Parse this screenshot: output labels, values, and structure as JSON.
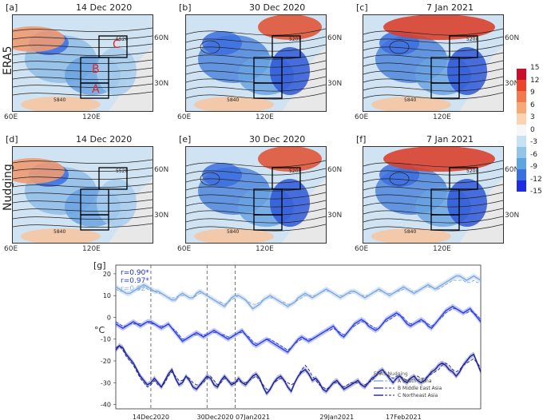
{
  "rows": [
    {
      "label": "ERA5",
      "panels": [
        {
          "tag": "[a]",
          "date": "14 Dec 2020"
        },
        {
          "tag": "[b]",
          "date": "30 Dec 2020"
        },
        {
          "tag": "[c]",
          "date": "7 Jan 2021"
        }
      ]
    },
    {
      "label": "Nudging",
      "panels": [
        {
          "tag": "[d]",
          "date": "14 Dec 2020"
        },
        {
          "tag": "[e]",
          "date": "30 Dec 2020"
        },
        {
          "tag": "[f]",
          "date": "7 Jan 2021"
        }
      ]
    }
  ],
  "map_ticks": {
    "x": [
      "60E",
      "120E"
    ],
    "y": [
      "60N",
      "30N"
    ]
  },
  "region_labels": [
    "A",
    "B",
    "C"
  ],
  "contour_labels": [
    "5840",
    "5520",
    "5200"
  ],
  "colorbar": {
    "ticks": [
      "15",
      "12",
      "9",
      "6",
      "3",
      "0",
      "-3",
      "-6",
      "-9",
      "-12",
      "-15"
    ],
    "colors": [
      "#c8102e",
      "#e8452a",
      "#f2794c",
      "#f7a876",
      "#fbd3b3",
      "#f7f7f7",
      "#c7e2f2",
      "#92c5e8",
      "#5ea5e0",
      "#3a6fe0",
      "#1c2ee0"
    ]
  },
  "chart_data": {
    "type": "line",
    "tag": "[g]",
    "ylabel": "°C",
    "ylim": [
      -42,
      24
    ],
    "yticks": [
      20,
      10,
      0,
      -10,
      -20,
      -30,
      -40
    ],
    "xticks": [
      "14Dec2020",
      "30Dec2020 07Jan2021",
      "29Jan2021",
      "17Feb2021"
    ],
    "correlations": [
      {
        "text": "r=0.90*",
        "color": "#1f2fb0"
      },
      {
        "text": "r=0.97*",
        "color": "#2b3fe0"
      },
      {
        "text": "r=0.92*",
        "color": "#8fb4e6"
      }
    ],
    "legend_title": "ERA5  Nudging",
    "series": [
      {
        "name": "A South China",
        "color": "#7fa9dd",
        "era5": [
          14,
          13,
          12,
          11,
          11,
          12,
          13,
          14,
          15,
          14,
          13,
          12,
          12,
          11,
          10,
          9,
          8,
          8,
          10,
          11,
          10,
          9,
          9,
          11,
          12,
          11,
          10,
          9,
          8,
          7,
          6,
          5,
          7,
          9,
          10,
          10,
          9,
          8,
          6,
          4,
          5,
          6,
          8,
          9,
          10,
          9,
          8,
          7,
          6,
          5,
          6,
          7,
          9,
          10,
          11,
          10,
          9,
          10,
          11,
          12,
          13,
          12,
          11,
          10,
          9,
          10,
          11,
          12,
          12,
          11,
          10,
          9,
          10,
          11,
          12,
          13,
          12,
          11,
          10,
          11,
          12,
          13,
          14,
          13,
          12,
          11,
          12,
          13,
          14,
          15,
          14,
          13,
          14,
          15,
          16,
          17,
          18,
          19,
          19,
          18,
          17,
          18,
          19,
          18,
          17
        ],
        "nudging": [
          13,
          12,
          12,
          11,
          11,
          12,
          13,
          13,
          14,
          13,
          12,
          12,
          11,
          11,
          10,
          9,
          9,
          9,
          10,
          10,
          10,
          9,
          9,
          10,
          11,
          11,
          10,
          9,
          8,
          7,
          7,
          6,
          7,
          8,
          9,
          10,
          9,
          8,
          7,
          6,
          6,
          7,
          8,
          9,
          9,
          9,
          8,
          7,
          7,
          6,
          6,
          7,
          8,
          9,
          10,
          10,
          10,
          10,
          11,
          12,
          12,
          12,
          11,
          10,
          10,
          10,
          11,
          11,
          12,
          11,
          10,
          10,
          10,
          11,
          12,
          12,
          12,
          11,
          11,
          11,
          12,
          12,
          13,
          13,
          12,
          12,
          12,
          13,
          14,
          14,
          14,
          13,
          13,
          14,
          15,
          16,
          17,
          17,
          17,
          17,
          16,
          16,
          17,
          16,
          16
        ]
      },
      {
        "name": "B Middle East Asia",
        "color": "#2b3fe0",
        "era5": [
          -3,
          -4,
          -5,
          -4,
          -3,
          -2,
          -3,
          -4,
          -3,
          -2,
          -2,
          -3,
          -4,
          -5,
          -4,
          -3,
          -5,
          -7,
          -9,
          -11,
          -10,
          -9,
          -8,
          -7,
          -8,
          -9,
          -8,
          -7,
          -6,
          -7,
          -8,
          -9,
          -10,
          -9,
          -8,
          -7,
          -6,
          -8,
          -10,
          -12,
          -13,
          -12,
          -11,
          -10,
          -11,
          -12,
          -13,
          -14,
          -15,
          -16,
          -14,
          -12,
          -10,
          -9,
          -10,
          -11,
          -10,
          -9,
          -8,
          -7,
          -6,
          -5,
          -4,
          -6,
          -8,
          -9,
          -7,
          -5,
          -3,
          -2,
          -1,
          -2,
          -4,
          -5,
          -6,
          -5,
          -3,
          -1,
          0,
          1,
          2,
          1,
          -1,
          -3,
          -4,
          -3,
          -2,
          -1,
          -2,
          -4,
          -5,
          -3,
          -1,
          1,
          3,
          4,
          5,
          4,
          3,
          2,
          3,
          4,
          2,
          0,
          -2
        ],
        "nudging": [
          -2,
          -3,
          -4,
          -4,
          -3,
          -3,
          -3,
          -3,
          -3,
          -2,
          -3,
          -3,
          -4,
          -4,
          -4,
          -3,
          -5,
          -6,
          -8,
          -10,
          -10,
          -9,
          -8,
          -8,
          -8,
          -8,
          -8,
          -7,
          -7,
          -7,
          -8,
          -8,
          -9,
          -9,
          -8,
          -7,
          -7,
          -8,
          -9,
          -11,
          -12,
          -12,
          -11,
          -10,
          -10,
          -11,
          -12,
          -13,
          -14,
          -15,
          -14,
          -12,
          -11,
          -10,
          -10,
          -10,
          -10,
          -9,
          -8,
          -7,
          -6,
          -6,
          -5,
          -6,
          -7,
          -8,
          -7,
          -5,
          -4,
          -3,
          -2,
          -2,
          -3,
          -4,
          -5,
          -5,
          -3,
          -2,
          -1,
          0,
          1,
          1,
          0,
          -2,
          -3,
          -3,
          -2,
          -2,
          -2,
          -3,
          -4,
          -3,
          -1,
          0,
          2,
          3,
          4,
          4,
          3,
          2,
          2,
          3,
          2,
          1,
          -1
        ]
      },
      {
        "name": "C Northeast Asia",
        "color": "#1a2296",
        "era5": [
          -15,
          -13,
          -14,
          -17,
          -19,
          -21,
          -24,
          -27,
          -29,
          -31,
          -30,
          -28,
          -30,
          -32,
          -29,
          -26,
          -24,
          -28,
          -31,
          -30,
          -27,
          -29,
          -32,
          -33,
          -31,
          -29,
          -27,
          -28,
          -31,
          -32,
          -29,
          -27,
          -29,
          -31,
          -30,
          -28,
          -30,
          -31,
          -29,
          -27,
          -26,
          -28,
          -32,
          -35,
          -33,
          -30,
          -28,
          -27,
          -29,
          -32,
          -34,
          -30,
          -27,
          -25,
          -24,
          -26,
          -29,
          -28,
          -30,
          -33,
          -34,
          -32,
          -30,
          -29,
          -31,
          -33,
          -32,
          -31,
          -30,
          -29,
          -31,
          -32,
          -30,
          -28,
          -27,
          -25,
          -24,
          -26,
          -28,
          -30,
          -28,
          -27,
          -29,
          -30,
          -28,
          -27,
          -29,
          -30,
          -29,
          -27,
          -25,
          -24,
          -22,
          -21,
          -22,
          -24,
          -25,
          -27,
          -25,
          -22,
          -20,
          -18,
          -17,
          -21,
          -25
        ],
        "nudging": [
          -14,
          -13,
          -15,
          -18,
          -20,
          -22,
          -25,
          -28,
          -30,
          -32,
          -31,
          -29,
          -31,
          -32,
          -30,
          -27,
          -25,
          -27,
          -29,
          -29,
          -27,
          -28,
          -30,
          -31,
          -31,
          -30,
          -28,
          -27,
          -29,
          -31,
          -30,
          -28,
          -29,
          -30,
          -30,
          -29,
          -30,
          -30,
          -29,
          -28,
          -27,
          -29,
          -31,
          -33,
          -33,
          -30,
          -29,
          -28,
          -29,
          -30,
          -31,
          -30,
          -27,
          -24,
          -22,
          -24,
          -27,
          -29,
          -31,
          -32,
          -33,
          -32,
          -30,
          -30,
          -31,
          -32,
          -31,
          -30,
          -30,
          -30,
          -31,
          -31,
          -30,
          -29,
          -27,
          -26,
          -25,
          -26,
          -27,
          -28,
          -27,
          -27,
          -28,
          -29,
          -28,
          -27,
          -27,
          -28,
          -28,
          -27,
          -26,
          -25,
          -24,
          -22,
          -21,
          -22,
          -24,
          -25,
          -24,
          -22,
          -21,
          -20,
          -19,
          -21,
          -23
        ]
      }
    ],
    "event_x_index": [
      10,
      26,
      34
    ]
  }
}
